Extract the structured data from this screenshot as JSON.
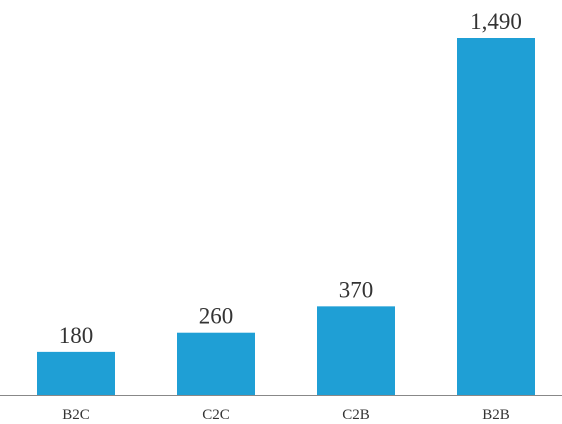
{
  "chart_data": {
    "type": "bar",
    "categories": [
      "B2C",
      "C2C",
      "C2B",
      "B2B"
    ],
    "values": [
      180,
      260,
      370,
      1490
    ],
    "value_labels": [
      "180",
      "260",
      "370",
      "1,490"
    ],
    "color": "#1f9fd5"
  }
}
